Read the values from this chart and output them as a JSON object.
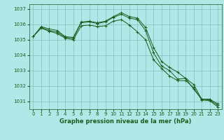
{
  "title": "Graphe pression niveau de la mer (hPa)",
  "background_color": "#b0e8e8",
  "grid_color": "#80c0c0",
  "line_color": "#1a5c1a",
  "xlim": [
    -0.5,
    23.5
  ],
  "ylim": [
    1030.5,
    1037.3
  ],
  "yticks": [
    1031,
    1032,
    1033,
    1034,
    1035,
    1036,
    1037
  ],
  "xticks": [
    0,
    1,
    2,
    3,
    4,
    5,
    6,
    7,
    8,
    9,
    10,
    11,
    12,
    13,
    14,
    15,
    16,
    17,
    18,
    19,
    20,
    21,
    22,
    23
  ],
  "series": [
    [
      1035.2,
      1035.85,
      1035.7,
      1035.6,
      1035.2,
      1035.15,
      1036.15,
      1036.2,
      1036.1,
      1036.2,
      1036.5,
      1036.75,
      1036.5,
      1036.4,
      1035.8,
      1034.5,
      1033.6,
      1033.2,
      1032.9,
      1032.5,
      1031.8,
      1031.15,
      1031.15,
      1030.85
    ],
    [
      1035.2,
      1035.8,
      1035.6,
      1035.5,
      1035.15,
      1035.1,
      1036.1,
      1036.15,
      1036.05,
      1036.15,
      1036.45,
      1036.65,
      1036.4,
      1036.3,
      1035.6,
      1034.15,
      1033.3,
      1033.0,
      1032.45,
      1032.5,
      1032.1,
      1031.15,
      1031.1,
      1030.75
    ],
    [
      1035.2,
      1035.75,
      1035.55,
      1035.4,
      1035.1,
      1035.0,
      1035.9,
      1035.95,
      1035.85,
      1035.9,
      1036.2,
      1036.3,
      1035.95,
      1035.5,
      1035.0,
      1033.7,
      1033.15,
      1032.65,
      1032.35,
      1032.35,
      1031.9,
      1031.1,
      1031.05,
      1030.65
    ]
  ],
  "title_fontsize": 6,
  "tick_fontsize": 5
}
